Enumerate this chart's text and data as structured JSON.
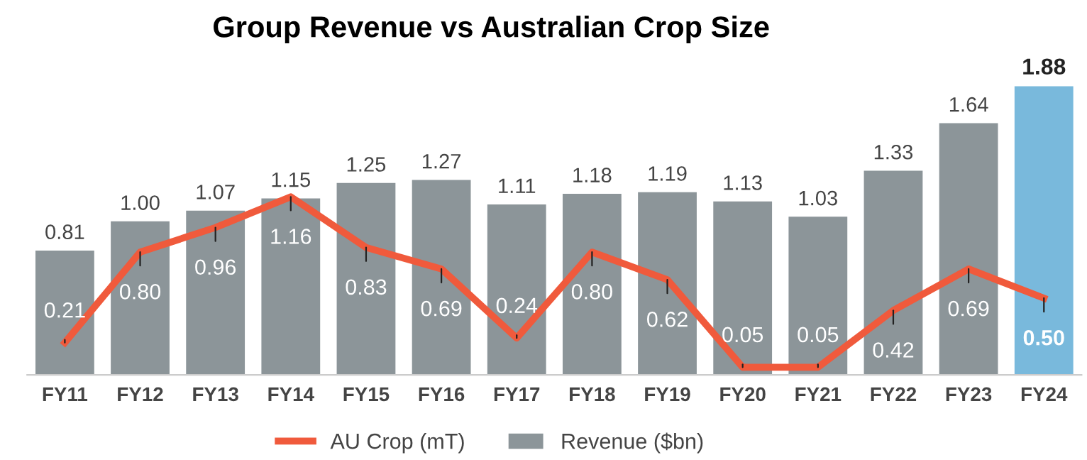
{
  "chart_data": {
    "type": "bar",
    "title": "Group Revenue vs Australian Crop Size",
    "categories": [
      "FY11",
      "FY12",
      "FY13",
      "FY14",
      "FY15",
      "FY16",
      "FY17",
      "FY18",
      "FY19",
      "FY20",
      "FY21",
      "FY22",
      "FY23",
      "FY24"
    ],
    "series": [
      {
        "name": "AU Crop (mT)",
        "type": "line",
        "color": "#f05a3c",
        "values": [
          0.21,
          0.8,
          0.96,
          1.16,
          0.83,
          0.69,
          0.24,
          0.8,
          0.62,
          0.05,
          0.05,
          0.42,
          0.69,
          0.5
        ],
        "value_labels": [
          "0.21",
          "0.80",
          "0.96",
          "1.16",
          "0.83",
          "0.69",
          "0.24",
          "0.80",
          "0.62",
          "0.05",
          "0.05",
          "0.42",
          "0.69",
          "0.50"
        ]
      },
      {
        "name": "Revenue ($bn)",
        "color": "#8c9599",
        "colors": [
          "#8c9599",
          "#8c9599",
          "#8c9599",
          "#8c9599",
          "#8c9599",
          "#8c9599",
          "#8c9599",
          "#8c9599",
          "#8c9599",
          "#8c9599",
          "#8c9599",
          "#8c9599",
          "#8c9599",
          "#79b9dc"
        ],
        "values": [
          0.81,
          1.0,
          1.07,
          1.15,
          1.25,
          1.27,
          1.11,
          1.18,
          1.19,
          1.13,
          1.03,
          1.33,
          1.64,
          1.88
        ],
        "value_labels": [
          "0.81",
          "1.00",
          "1.07",
          "1.15",
          "1.25",
          "1.27",
          "1.11",
          "1.18",
          "1.19",
          "1.13",
          "1.03",
          "1.33",
          "1.64",
          "1.88"
        ]
      }
    ],
    "legend": "bottom",
    "marker": "none",
    "line_style": "solid"
  }
}
